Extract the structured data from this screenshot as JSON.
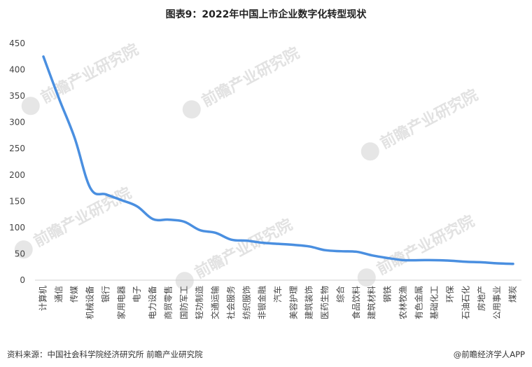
{
  "title": "图表9：2022年中国上市企业数字化转型现状",
  "watermark": "前瞻产业研究院",
  "footer": {
    "source": "资料来源：中国社会科学院经济研究所 前瞻产业研究院",
    "brand": "@前瞻经济学人APP"
  },
  "chart_data": {
    "type": "line",
    "title": "图表9：2022年中国上市企业数字化转型现状",
    "xlabel": "",
    "ylabel": "",
    "ylim": [
      0,
      450
    ],
    "yticks": [
      0,
      50,
      100,
      150,
      200,
      250,
      300,
      350,
      400,
      450
    ],
    "grid": false,
    "color": "#4a8fe0",
    "categories": [
      "计算机",
      "通信",
      "传媒",
      "机械设备",
      "银行",
      "家用电器",
      "电子",
      "电力设备",
      "商贸零售",
      "国防军工",
      "轻功制造",
      "交通运输",
      "社会服务",
      "纺织服饰",
      "非银金融",
      "汽车",
      "美容护理",
      "建筑装饰",
      "医药生物",
      "综合",
      "食品饮料",
      "建筑材料",
      "钢铁",
      "农林牧渔",
      "有色金属",
      "基础化工",
      "环保",
      "石油石化",
      "房地产",
      "公用事业",
      "煤炭"
    ],
    "values": [
      425,
      345,
      270,
      175,
      163,
      152,
      140,
      116,
      115,
      111,
      95,
      90,
      77,
      75,
      71,
      69,
      67,
      64,
      57,
      55,
      54,
      47,
      42,
      38,
      38,
      38,
      37,
      35,
      34,
      32,
      31
    ]
  }
}
